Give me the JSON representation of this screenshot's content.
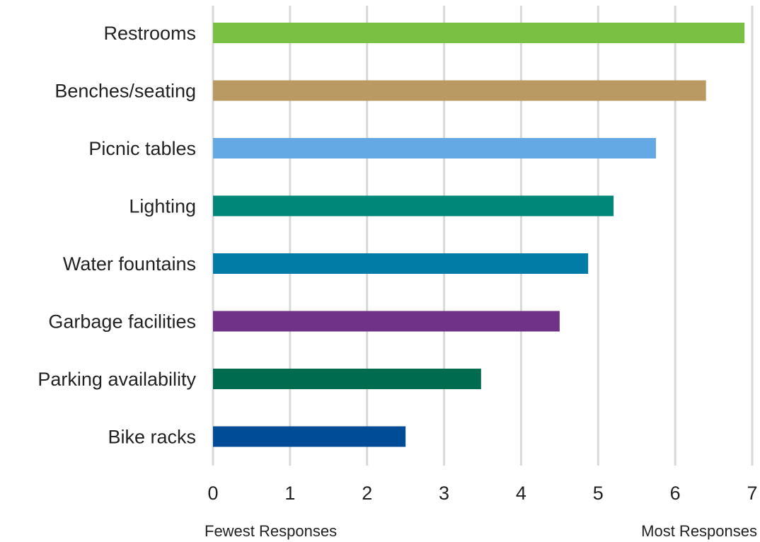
{
  "chart_data": {
    "type": "bar",
    "orientation": "horizontal",
    "categories": [
      "Restrooms",
      "Benches/seating",
      "Picnic tables",
      "Lighting",
      "Water fountains",
      "Garbage facilities",
      "Parking availability",
      "Bike racks"
    ],
    "values": [
      6.9,
      6.4,
      5.75,
      5.2,
      4.87,
      4.5,
      3.48,
      2.5
    ],
    "colors": [
      "#7ac143",
      "#b99a63",
      "#64a9e3",
      "#00877a",
      "#007ca6",
      "#6f3288",
      "#006b4e",
      "#004c97"
    ],
    "xlim": [
      0,
      7
    ],
    "xticks": [
      "0",
      "1",
      "2",
      "3",
      "4",
      "5",
      "6",
      "7"
    ],
    "grid": true,
    "xlabel_left": "Fewest Responses",
    "xlabel_right": "Most Responses"
  }
}
